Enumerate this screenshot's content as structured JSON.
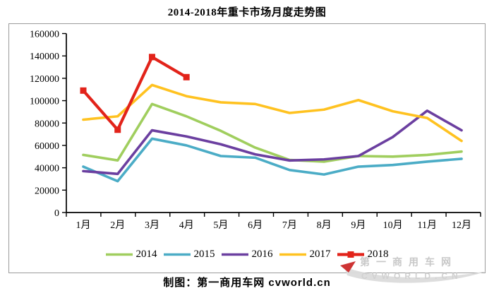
{
  "title": "2014-2018年重卡市场月度走势图",
  "caption": "制图：第一商用车网 cvworld.cn",
  "watermark": {
    "line1": "第一商用车网",
    "line2": "CVWORLD.CN"
  },
  "axis": {
    "y_unit": "",
    "x_unit": ""
  },
  "chart_data": {
    "type": "line",
    "title": "2014-2018年重卡市场月度走势图",
    "categories": [
      "1月",
      "2月",
      "3月",
      "4月",
      "5月",
      "6月",
      "7月",
      "8月",
      "9月",
      "10月",
      "11月",
      "12月"
    ],
    "series": [
      {
        "name": "2014",
        "color": "#A0CE5E",
        "marker": "none",
        "values": [
          51500,
          46600,
          97000,
          86000,
          73000,
          58000,
          47000,
          45500,
          50500,
          50000,
          51500,
          54500
        ]
      },
      {
        "name": "2015",
        "color": "#4BACC6",
        "marker": "none",
        "values": [
          41000,
          28000,
          66000,
          60000,
          50500,
          49000,
          38000,
          34000,
          41000,
          42500,
          45500,
          48000
        ]
      },
      {
        "name": "2016",
        "color": "#6B3FA0",
        "marker": "none",
        "values": [
          37000,
          34500,
          73500,
          68000,
          61000,
          52000,
          46500,
          47500,
          50500,
          67500,
          91000,
          73500
        ]
      },
      {
        "name": "2017",
        "color": "#FFC220",
        "marker": "none",
        "values": [
          83000,
          86000,
          114000,
          104000,
          98500,
          97000,
          89000,
          92000,
          100500,
          90500,
          84500,
          64000
        ]
      },
      {
        "name": "2018",
        "color": "#E2231A",
        "marker": "square",
        "values": [
          109000,
          74000,
          139000,
          121000,
          null,
          null,
          null,
          null,
          null,
          null,
          null,
          null
        ]
      }
    ],
    "ylim": [
      0,
      160000
    ],
    "yticks": [
      0,
      20000,
      40000,
      60000,
      80000,
      100000,
      120000,
      140000,
      160000
    ],
    "grid": false,
    "legend_position": "bottom"
  }
}
